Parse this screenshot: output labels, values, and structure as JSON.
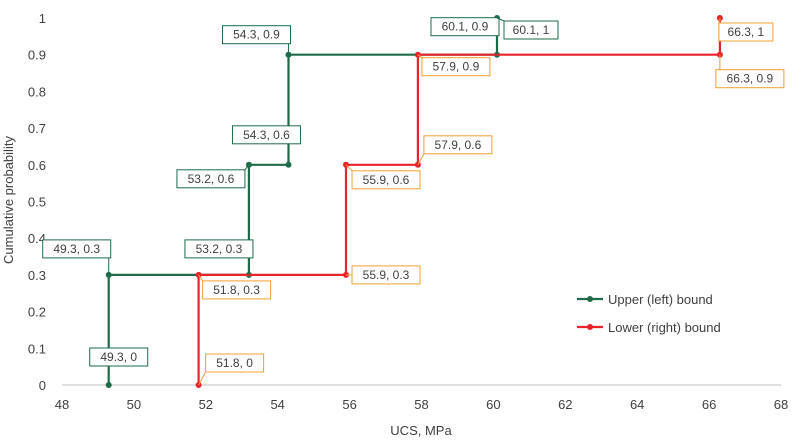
{
  "chart_data": {
    "type": "line",
    "xlabel": "UCS, MPa",
    "ylabel": "Cumulative probability",
    "xlim": [
      48,
      68
    ],
    "ylim": [
      0,
      1
    ],
    "x_ticks": [
      "48",
      "50",
      "52",
      "54",
      "56",
      "58",
      "60",
      "62",
      "64",
      "66",
      "68"
    ],
    "y_ticks": [
      "0",
      "0.1",
      "0.2",
      "0.3",
      "0.4",
      "0.5",
      "0.6",
      "0.7",
      "0.8",
      "0.9",
      "1"
    ],
    "grid": false,
    "legend_position": "bottom-right",
    "step": true,
    "series": [
      {
        "name": "Upper (left) bound",
        "color": "#1e6b4a",
        "points": [
          {
            "x": 49.3,
            "y": 0,
            "label": "49.3, 0"
          },
          {
            "x": 49.3,
            "y": 0.3,
            "label": "49.3, 0.3"
          },
          {
            "x": 53.2,
            "y": 0.3,
            "label": "53.2, 0.3"
          },
          {
            "x": 53.2,
            "y": 0.6,
            "label": "53.2, 0.6"
          },
          {
            "x": 54.3,
            "y": 0.6,
            "label": "54.3, 0.6"
          },
          {
            "x": 54.3,
            "y": 0.9,
            "label": "54.3, 0.9"
          },
          {
            "x": 60.1,
            "y": 0.9,
            "label": "60.1, 0.9"
          },
          {
            "x": 60.1,
            "y": 1,
            "label": "60.1, 1"
          }
        ]
      },
      {
        "name": "Lower (right) bound",
        "color": "#e8232a",
        "points": [
          {
            "x": 51.8,
            "y": 0,
            "label": "51.8, 0"
          },
          {
            "x": 51.8,
            "y": 0.3,
            "label": "51.8, 0.3"
          },
          {
            "x": 55.9,
            "y": 0.3,
            "label": "55.9, 0.3"
          },
          {
            "x": 55.9,
            "y": 0.6,
            "label": "55.9, 0.6"
          },
          {
            "x": 57.9,
            "y": 0.6,
            "label": "57.9, 0.6"
          },
          {
            "x": 57.9,
            "y": 0.9,
            "label": "57.9, 0.9"
          },
          {
            "x": 66.3,
            "y": 0.9,
            "label": "66.3, 0.9"
          },
          {
            "x": 66.3,
            "y": 1,
            "label": "66.3, 1"
          }
        ]
      }
    ],
    "label_border_colors": {
      "Upper (left) bound": "#1e6b4a",
      "Lower (right) bound": "#f0a030"
    }
  }
}
